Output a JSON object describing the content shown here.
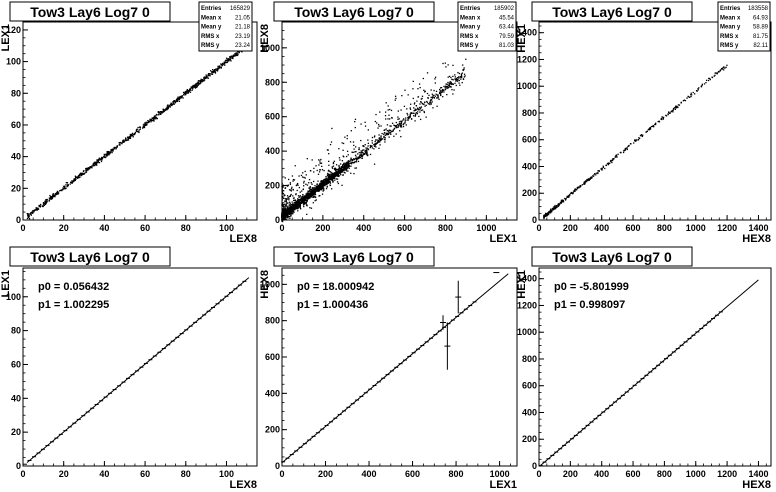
{
  "chart_data": [
    {
      "type": "scatter",
      "title": "Tow3 Lay6 Log7 0",
      "xlabel": "LEX8",
      "ylabel": "LEX1",
      "xlim": [
        0,
        115
      ],
      "ylim": [
        0,
        125
      ],
      "xticks": [
        0,
        20,
        40,
        60,
        80,
        100
      ],
      "yticks": [
        0,
        20,
        40,
        60,
        80,
        100,
        120
      ],
      "stats": [
        {
          "label": "Entries",
          "value": "165829"
        },
        {
          "label": "Mean x",
          "value": "21.05"
        },
        {
          "label": "Mean y",
          "value": "21.18"
        },
        {
          "label": "RMS x",
          "value": "23.19"
        },
        {
          "label": "RMS y",
          "value": "23.24"
        }
      ],
      "fit": null,
      "trend": {
        "slope": 1.0,
        "intercept": 0.1
      },
      "x_range": [
        2,
        108
      ],
      "scatter_amount": 0.7
    },
    {
      "type": "scatter",
      "title": "Tow3 Lay6 Log7 0",
      "xlabel": "LEX1",
      "ylabel": "HEX8",
      "xlim": [
        0,
        1150
      ],
      "ylim": [
        0,
        1150
      ],
      "xticks": [
        0,
        200,
        400,
        600,
        800,
        1000
      ],
      "yticks": [
        0,
        200,
        400,
        600,
        800,
        1000
      ],
      "stats": [
        {
          "label": "Entries",
          "value": "185902"
        },
        {
          "label": "Mean x",
          "value": "45.54"
        },
        {
          "label": "Mean y",
          "value": "63.44"
        },
        {
          "label": "RMS x",
          "value": "79.59"
        },
        {
          "label": "RMS y",
          "value": "81.03"
        }
      ],
      "fit": null,
      "trend": {
        "slope": 0.93,
        "intercept": 20
      },
      "x_range": [
        0,
        900
      ],
      "scatter_amount": 18
    },
    {
      "type": "scatter",
      "title": "Tow3 Lay6 Log7 0",
      "xlabel": "HEX8",
      "ylabel": "HEX1",
      "xlim": [
        0,
        1480
      ],
      "ylim": [
        0,
        1480
      ],
      "xticks": [
        0,
        200,
        400,
        600,
        800,
        1000,
        1200,
        1400
      ],
      "yticks": [
        0,
        200,
        400,
        600,
        800,
        1000,
        1200,
        1400
      ],
      "stats": [
        {
          "label": "Entries",
          "value": "183558"
        },
        {
          "label": "Mean x",
          "value": "64.93"
        },
        {
          "label": "Mean y",
          "value": "58.89"
        },
        {
          "label": "RMS x",
          "value": "81.75"
        },
        {
          "label": "RMS y",
          "value": "82.11"
        }
      ],
      "fit": null,
      "trend": {
        "slope": 0.97,
        "intercept": -5
      },
      "x_range": [
        30,
        1200
      ],
      "scatter_amount": 6
    },
    {
      "type": "line",
      "title": "Tow3 Lay6 Log7 0",
      "xlabel": "LEX8",
      "ylabel": "LEX1",
      "xlim": [
        0,
        115
      ],
      "ylim": [
        0,
        117
      ],
      "xticks": [
        0,
        20,
        40,
        60,
        80,
        100
      ],
      "yticks": [
        0,
        20,
        40,
        60,
        80,
        100
      ],
      "stats": null,
      "fit": {
        "p0": "p0 = 0.056432",
        "p1": "p1 = 1.002295",
        "p0_val": 0.056432,
        "p1_val": 1.002295,
        "x_from": 2,
        "x_to": 111
      },
      "profile": {
        "x_from": 1,
        "x_to": 111,
        "step": 2.2
      },
      "errors": []
    },
    {
      "type": "line",
      "title": "Tow3 Lay6 Log7 0",
      "xlabel": "LEX1",
      "ylabel": "HEX8",
      "xlim": [
        0,
        1080
      ],
      "ylim": [
        0,
        1090
      ],
      "xticks": [
        0,
        200,
        400,
        600,
        800,
        1000
      ],
      "yticks": [
        0,
        200,
        400,
        600,
        800,
        1000
      ],
      "stats": null,
      "fit": {
        "p0": "p0 = 18.000942",
        "p1": "p1 = 1.000436",
        "p0_val": 18.000942,
        "p1_val": 1.000436,
        "x_from": 0,
        "x_to": 1040
      },
      "profile": {
        "x_from": 5,
        "x_to": 900,
        "step": 20
      },
      "errors": [
        {
          "x": 760,
          "y": 660,
          "err": 130
        },
        {
          "x": 810,
          "y": 930,
          "err": 90
        },
        {
          "x": 740,
          "y": 790,
          "err": 40
        },
        {
          "x": 985,
          "y": 1065,
          "err": 0
        }
      ]
    },
    {
      "type": "line",
      "title": "Tow3 Lay6 Log7 0",
      "xlabel": "HEX8",
      "ylabel": "HEX1",
      "xlim": [
        0,
        1480
      ],
      "ylim": [
        0,
        1480
      ],
      "xticks": [
        0,
        200,
        400,
        600,
        800,
        1000,
        1200,
        1400
      ],
      "yticks": [
        0,
        200,
        400,
        600,
        800,
        1000,
        1200,
        1400
      ],
      "stats": null,
      "fit": {
        "p0": "p0 = -5.801999",
        "p1": "p1 = 0.998097",
        "p0_val": -5.801999,
        "p1_val": 0.998097,
        "x_from": 5,
        "x_to": 1400
      },
      "profile": {
        "x_from": 10,
        "x_to": 1180,
        "step": 25
      },
      "errors": []
    }
  ]
}
